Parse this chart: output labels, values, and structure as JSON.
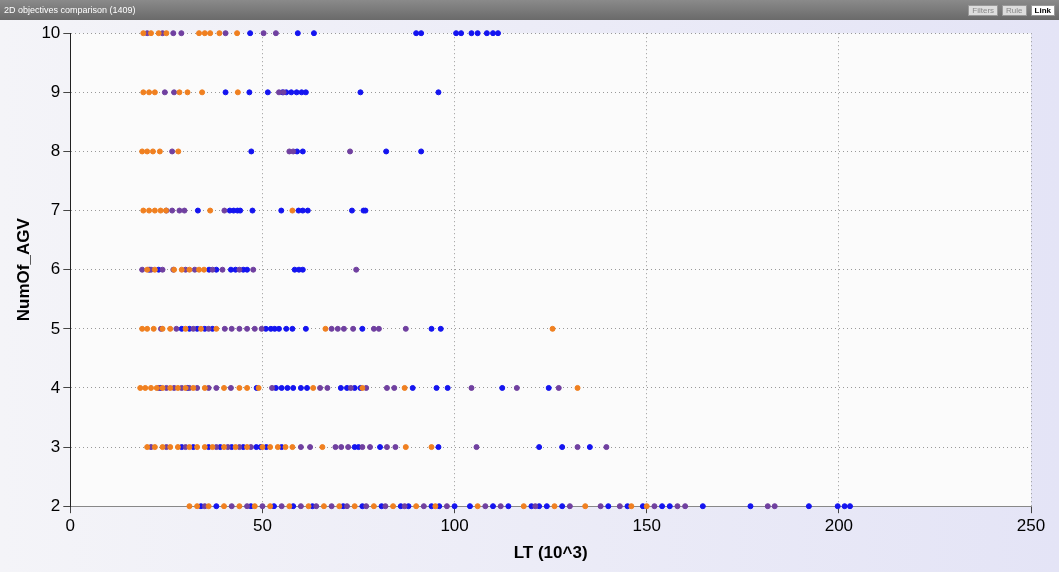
{
  "chart_data": {
    "type": "scatter",
    "title": "2D objectives comparison (1409)",
    "annotations": [
      "Filters",
      "Rule",
      "Link"
    ],
    "xlabel": "LT (10^3)",
    "ylabel": "NumOf_AGV",
    "xlim": [
      0,
      250
    ],
    "xticks": [
      0,
      50,
      100,
      150,
      200,
      250
    ],
    "ylim": [
      2,
      10
    ],
    "yticks": [
      2,
      3,
      4,
      5,
      6,
      7,
      8,
      9,
      10
    ],
    "grid": true,
    "line_style": "dotted",
    "marker": "circle",
    "legend": false,
    "series": [
      {
        "color": "#f08020",
        "x": [
          19,
          21,
          23,
          25,
          33.5,
          35,
          36.4,
          38.8,
          43.4,
          19,
          20.5,
          22,
          28.4,
          30.5,
          34.3,
          43.6,
          18.7,
          20,
          21.5,
          23.3,
          28.1,
          19,
          20.5,
          22,
          23.5,
          24.9,
          36.4,
          57.8,
          20,
          22,
          27,
          29,
          31,
          33.5,
          34.8,
          18.7,
          20,
          21.7,
          24,
          26,
          30,
          34,
          38,
          66.4,
          125.5,
          18.2,
          19.5,
          21,
          22.5,
          24,
          26,
          28,
          30,
          32,
          35,
          40,
          44,
          46,
          49,
          63.2,
          76,
          87,
          132,
          20,
          22,
          24,
          26,
          28,
          31,
          33,
          35,
          37,
          40,
          43,
          46,
          50,
          52,
          54,
          56,
          57.8,
          65.6,
          87.3,
          94,
          31,
          33,
          36,
          40,
          44,
          48,
          52,
          57,
          62,
          66,
          70,
          74,
          79,
          84,
          90,
          95,
          106,
          118,
          126,
          134,
          146,
          150
        ],
        "values": [
          10,
          10,
          10,
          10,
          10,
          10,
          10,
          10,
          10,
          9,
          9,
          9,
          9,
          9,
          9,
          9,
          8,
          8,
          8,
          8,
          8,
          7,
          7,
          7,
          7,
          7,
          7,
          7,
          6,
          6,
          6,
          6,
          6,
          6,
          6,
          5,
          5,
          5,
          5,
          5,
          5,
          5,
          5,
          5,
          5,
          4,
          4,
          4,
          4,
          4,
          4,
          4,
          4,
          4,
          4,
          4,
          4,
          4,
          4,
          4,
          4,
          4,
          4,
          3,
          3,
          3,
          3,
          3,
          3,
          3,
          3,
          3,
          3,
          3,
          3,
          3,
          3,
          3,
          3,
          3,
          3,
          3,
          3,
          2,
          2,
          2,
          2,
          2,
          2,
          2,
          2,
          2,
          2,
          2,
          2,
          2,
          2,
          2,
          2,
          2,
          2,
          2,
          2,
          2,
          2
        ]
      },
      {
        "color": "#7040a0",
        "x": [
          20,
          24,
          26.8,
          28.9,
          40.4,
          50.3,
          53.5,
          24.6,
          27,
          54.3,
          55.5,
          26.5,
          57,
          58,
          72.8,
          25,
          26.5,
          28.4,
          29.7,
          40.1,
          18.7,
          21,
          24,
          26.8,
          30,
          32.4,
          37,
          39.6,
          44,
          47.6,
          74.4,
          23.6,
          27.6,
          32,
          36,
          40.2,
          42,
          44,
          46,
          48,
          49.8,
          68,
          69.6,
          71.2,
          73.6,
          79,
          80.3,
          87.3,
          23,
          25,
          27,
          29,
          31,
          33,
          36,
          38,
          41.8,
          52.5,
          65,
          66.9,
          73,
          77,
          82.4,
          84.3,
          104.4,
          116.2,
          127.1,
          21,
          25,
          30,
          38,
          41,
          44,
          47,
          60,
          62.4,
          69,
          70.5,
          72.3,
          76,
          78,
          82.4,
          84.6,
          105.7,
          132,
          139.5,
          35,
          42,
          46,
          50,
          55,
          60,
          64,
          68,
          72,
          77,
          82,
          87,
          92,
          98,
          108,
          112,
          121,
          130,
          138,
          143,
          152,
          158,
          160,
          181.5,
          183.3
        ],
        "values": [
          10,
          10,
          10,
          10,
          10,
          10,
          10,
          9,
          9,
          9,
          9,
          8,
          8,
          8,
          8,
          7,
          7,
          7,
          7,
          7,
          6,
          6,
          6,
          6,
          6,
          6,
          6,
          6,
          6,
          6,
          6,
          5,
          5,
          5,
          5,
          5,
          5,
          5,
          5,
          5,
          5,
          5,
          5,
          5,
          5,
          5,
          5,
          5,
          4,
          4,
          4,
          4,
          4,
          4,
          4,
          4,
          4,
          4,
          4,
          4,
          4,
          4,
          4,
          4,
          4,
          4,
          4,
          3,
          3,
          3,
          3,
          3,
          3,
          3,
          3,
          3,
          3,
          3,
          3,
          3,
          3,
          3,
          3,
          3,
          3,
          3,
          2,
          2,
          2,
          2,
          2,
          2,
          2,
          2,
          2,
          2,
          2,
          2,
          2,
          2,
          2,
          2,
          2,
          2,
          2,
          2,
          2,
          2,
          2,
          2,
          2
        ]
      },
      {
        "color": "#1414f0",
        "x": [
          46.8,
          59.2,
          63.4,
          90,
          91.3,
          100.4,
          101.7,
          104.4,
          106,
          108.4,
          110,
          111.3,
          40.4,
          46.6,
          51.4,
          55.2,
          56.2,
          57.5,
          58.9,
          60.2,
          61.3,
          75.5,
          95.8,
          47.1,
          59,
          60.5,
          82.2,
          91.3,
          33.2,
          41.5,
          42.5,
          43.5,
          44.2,
          47.4,
          54.9,
          59.4,
          60.5,
          61.8,
          73.3,
          76.3,
          76.8,
          20.5,
          23,
          36.1,
          38,
          41.8,
          43,
          45,
          46,
          58.4,
          59.5,
          60.5,
          29,
          31,
          33,
          35,
          37,
          50.9,
          52.2,
          53.2,
          54.3,
          56.2,
          57.8,
          61.3,
          76,
          94,
          96.4,
          23.5,
          30.5,
          48.5,
          53.5,
          55,
          56.5,
          58,
          60,
          61.6,
          70.4,
          72,
          74,
          75.5,
          89.1,
          95.3,
          98.2,
          112.4,
          124.5,
          29,
          32,
          36,
          39,
          42,
          45,
          48.4,
          49.5,
          51,
          55,
          74,
          75,
          80.6,
          95.8,
          122,
          128,
          135.2,
          34,
          38,
          47,
          53,
          58,
          63,
          71,
          76,
          81,
          86,
          88,
          94,
          96,
          100,
          104,
          110,
          114,
          120,
          122,
          124,
          128,
          140,
          145,
          149,
          154,
          156,
          164.6,
          177,
          192.2,
          199.7,
          201.5,
          202.9
        ],
        "values": [
          10,
          10,
          10,
          10,
          10,
          10,
          10,
          10,
          10,
          10,
          10,
          10,
          9,
          9,
          9,
          9,
          9,
          9,
          9,
          9,
          9,
          9,
          9,
          8,
          8,
          8,
          8,
          8,
          7,
          7,
          7,
          7,
          7,
          7,
          7,
          7,
          7,
          7,
          7,
          7,
          7,
          6,
          6,
          6,
          6,
          6,
          6,
          6,
          6,
          6,
          6,
          6,
          5,
          5,
          5,
          5,
          5,
          5,
          5,
          5,
          5,
          5,
          5,
          5,
          5,
          5,
          5,
          4,
          4,
          4,
          4,
          4,
          4,
          4,
          4,
          4,
          4,
          4,
          4,
          4,
          4,
          4,
          4,
          4,
          4,
          3,
          3,
          3,
          3,
          3,
          3,
          3,
          3,
          3,
          3,
          3,
          3,
          3,
          3,
          3,
          3,
          3,
          2,
          2,
          2,
          2,
          2,
          2,
          2,
          2,
          2,
          2,
          2,
          2,
          2,
          2,
          2,
          2,
          2,
          2,
          2,
          2,
          2,
          2,
          2,
          2,
          2,
          2,
          2,
          2,
          2,
          2,
          2,
          2
        ]
      }
    ]
  }
}
